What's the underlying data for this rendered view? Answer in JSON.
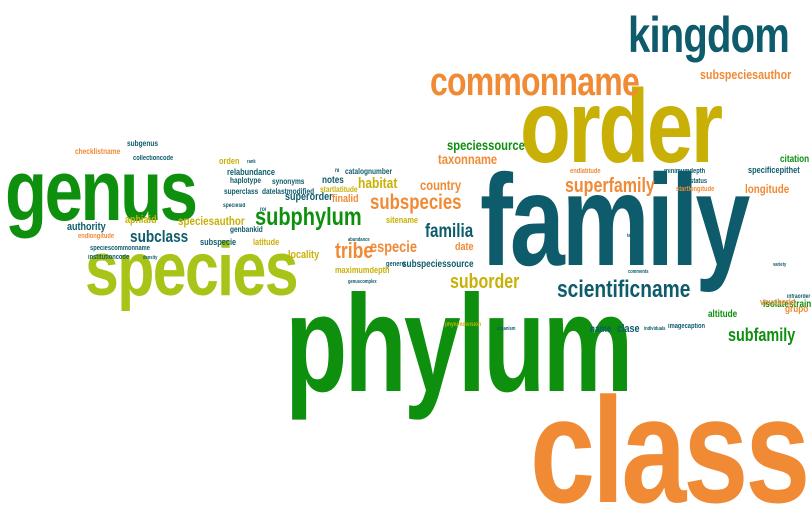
{
  "palette": {
    "dark_green": "#0e8f0e",
    "teal": "#0d5b6b",
    "mustard": "#c9b007",
    "orange": "#f08a35",
    "lime": "#a9c418",
    "dark_teal": "#0a4f5e"
  },
  "words": {
    "kingdom": "kingdom",
    "commonname": "commonname",
    "subspeciesauthor": "subspeciesauthor",
    "order": "order",
    "family": "family",
    "genus": "genus",
    "species": "species",
    "phylum": "phylum",
    "class": "class",
    "subphylum": "subphylum",
    "superfamily": "superfamily",
    "subspecies": "subspecies",
    "scientificname": "scientificname",
    "subfamily": "subfamily",
    "suborder": "suborder",
    "tribe": "tribe",
    "familia": "familia",
    "subclass": "subclass",
    "especie": "especie",
    "habitat": "habitat",
    "country": "country",
    "speciessource": "speciessource",
    "taxonname": "taxonname",
    "longitude": "longitude",
    "authority": "authority",
    "speciesauthor": "speciesauthor",
    "aphiaid": "aphiaid",
    "superorder": "superorder",
    "finalid": "finalid",
    "notes": "notes",
    "locality": "locality",
    "date": "date",
    "subspeciessource": "subspeciessource",
    "clase": "clase",
    "name": "name",
    "citation": "citation",
    "specificepithet": "specificepithet",
    "isolatestrain": "isolatestrain",
    "voucherid": "voucherid",
    "grupo": "grupo",
    "altitude": "altitude",
    "irishstatus": "irishstatus",
    "startlongitude": "startlongitude",
    "minimumdepth": "minimumdepth",
    "endlatitude": "endlatitude",
    "maximumdepth": "maximumdepth",
    "sitename": "sitename",
    "latitude": "latitude",
    "subspecie": "subspecie",
    "orden": "orden",
    "relabundance": "relabundance",
    "haplotype": "haplotype",
    "synonyms": "synonyms",
    "superclass": "superclass",
    "datelastmodified": "datelastmodified",
    "genbankid": "genbankid",
    "catalognumber": "catalognumber",
    "startlatitude": "startlatitude",
    "checklistname": "checklistname",
    "subgenus": "subgenus",
    "collectioncode": "collectioncode",
    "endlongitude": "endlongitude",
    "institutioncode": "institutioncode",
    "speciescommonname": "speciescommonname",
    "genero": "genero",
    "imagecaption": "imagecaption",
    "phylumdivision": "phylumdivision",
    "infraorder": "infraorder",
    "subkingdom": "subkingdom",
    "section": "section",
    "author": "author",
    "rank": "rank",
    "density": "density",
    "organism": "organism",
    "speciesid": "speciesid",
    "roi": "roi",
    "ni": "ni",
    "variety": "variety",
    "abundance": "abundance",
    "individuals": "individuals",
    "genuscomplex": "genuscomplex",
    "tax": "tax",
    "comments": "comments"
  }
}
